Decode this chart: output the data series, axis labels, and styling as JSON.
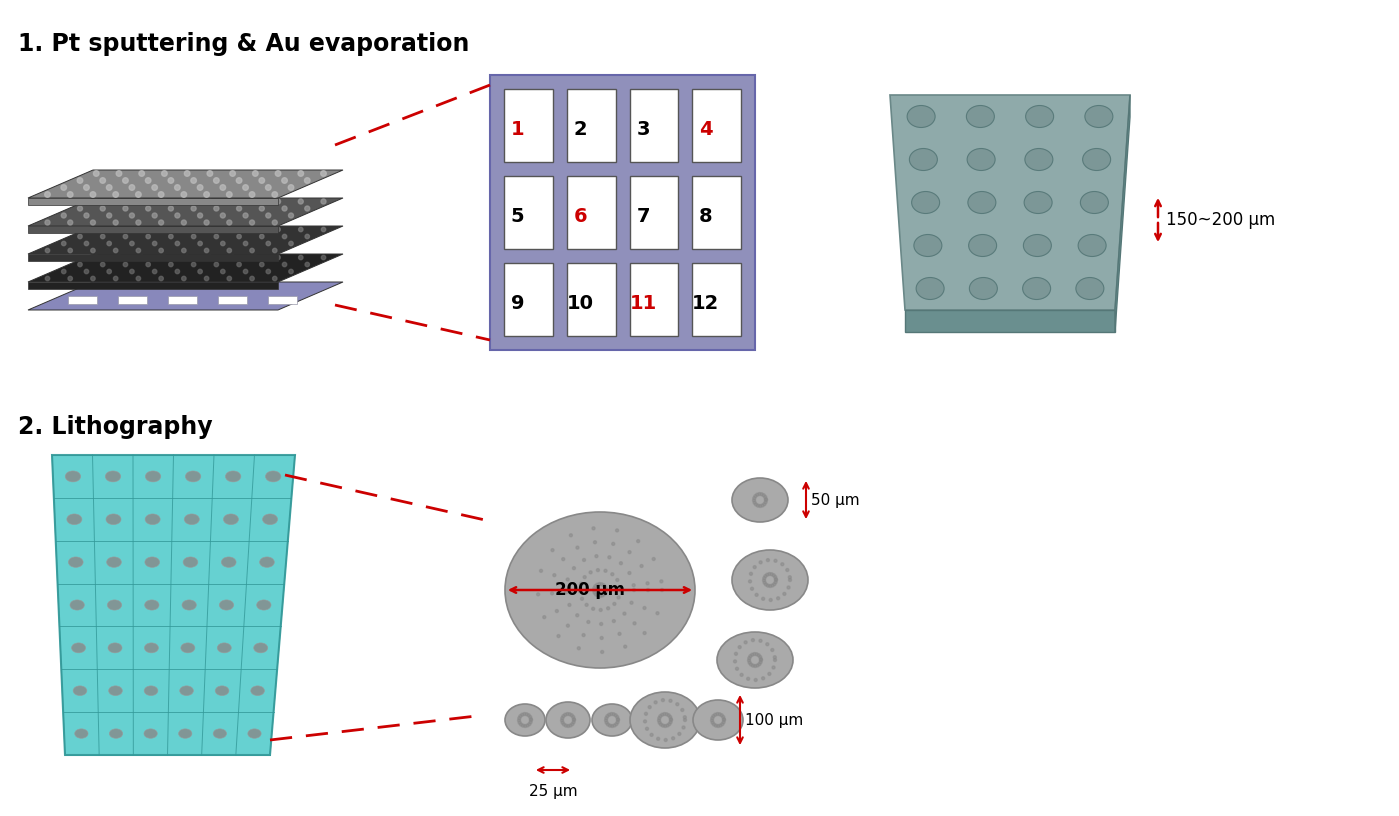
{
  "title1": "1. Pt sputtering & Au evaporation",
  "title2": "2. Lithography",
  "grid_labels": [
    [
      "1",
      "2",
      "3",
      "4"
    ],
    [
      "5",
      "6",
      "7",
      "8"
    ],
    [
      "9",
      "10",
      "11",
      "12"
    ]
  ],
  "red_labels": [
    "1",
    "4",
    "6",
    "11"
  ],
  "grid_bg": "#9090bb",
  "cell_bg": "#ffffff",
  "plate_top": "#8faaaa",
  "plate_front": "#6a8f8f",
  "plate_right": "#7aabab",
  "dot_color": "#7a9595",
  "teal_bg": "#55cccc",
  "teal_line": "#339999",
  "teal_dot": "#888899",
  "circle_fill": "#aaaaaa",
  "circle_edge": "#888888",
  "arrow_color": "#cc0000",
  "dash_color": "#cc0000",
  "stack_l0": "#8888bb",
  "stack_l1": "#222222",
  "stack_l2": "#333333",
  "stack_l3": "#444444",
  "stack_l4": "#777777",
  "label_150_200": "150~200 μm",
  "label_200": "200 μm",
  "label_50": "50 μm",
  "label_100": "100 μm",
  "label_25": "25 μm",
  "bg": "#ffffff"
}
